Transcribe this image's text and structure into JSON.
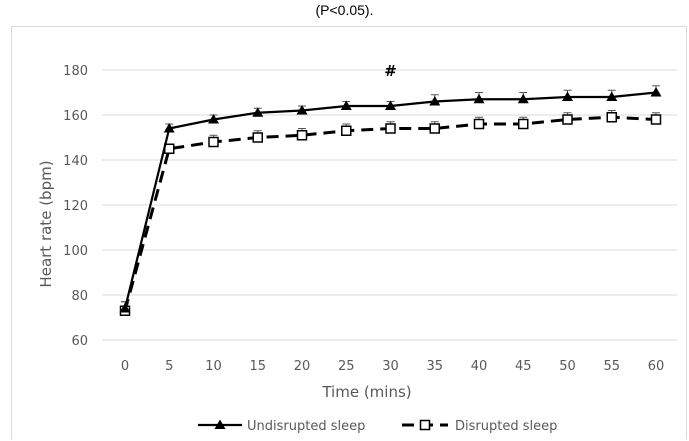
{
  "caption": "(P<0.05).",
  "chart_data": {
    "type": "line",
    "xlabel": "Time (mins)",
    "ylabel": "Heart  rate (bpm)",
    "x": [
      0,
      5,
      10,
      15,
      20,
      25,
      30,
      35,
      40,
      45,
      50,
      55,
      60
    ],
    "ylim": [
      60,
      180
    ],
    "yticks": [
      60,
      80,
      100,
      120,
      140,
      160,
      180
    ],
    "grid": true,
    "legend_position": "bottom",
    "annotation": {
      "text": "#",
      "x": 30
    },
    "series": [
      {
        "name": "Undisrupted sleep",
        "marker": "filled-triangle",
        "line_style": "solid",
        "color": "#000000",
        "values": [
          74,
          154,
          158,
          161,
          162,
          164,
          164,
          166,
          167,
          167,
          168,
          168,
          170
        ],
        "error": [
          3,
          2,
          2,
          2,
          2,
          2,
          2,
          3,
          3,
          3,
          3,
          3,
          3
        ]
      },
      {
        "name": "Disrupted sleep",
        "marker": "open-square",
        "line_style": "dashed",
        "color": "#000000",
        "values": [
          73,
          145,
          148,
          150,
          151,
          153,
          154,
          154,
          156,
          156,
          158,
          159,
          158
        ],
        "error": [
          4,
          2,
          3,
          3,
          3,
          3,
          3,
          3,
          3,
          3,
          3,
          3,
          3
        ]
      }
    ]
  }
}
